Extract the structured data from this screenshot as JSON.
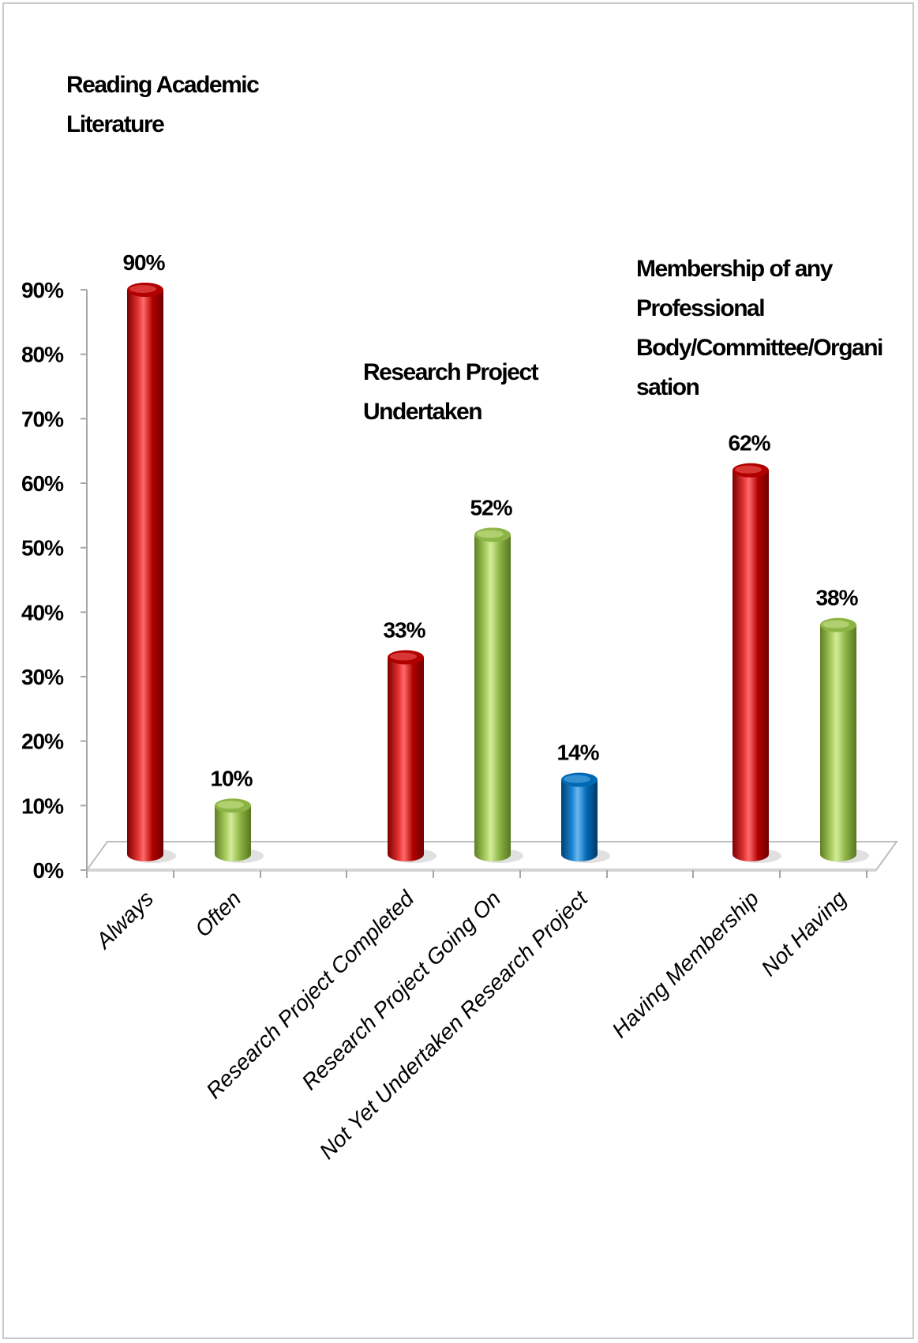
{
  "chart_data": {
    "type": "bar",
    "categories": [
      "Always",
      "Often",
      "Research Project Completed",
      "Research Project Going On",
      "Not Yet Undertaken Research Project",
      "Having Membership",
      "Not Having"
    ],
    "values": [
      90,
      10,
      33,
      52,
      14,
      62,
      38
    ],
    "data_labels": [
      "90%",
      "10%",
      "33%",
      "52%",
      "14%",
      "62%",
      "38%"
    ],
    "bar_colors": [
      "#c00000",
      "#92b84a",
      "#c00000",
      "#92b84a",
      "#0070c0",
      "#c00000",
      "#92b84a"
    ],
    "group_labels": [
      [
        "Reading Academic",
        "Literature"
      ],
      [
        "Research Project",
        "Undertaken"
      ],
      [
        "Membership of any",
        "Professional",
        "Body/Committee/Organi",
        "sation"
      ]
    ],
    "ylim": [
      0,
      90
    ],
    "ytick_labels": [
      "0%",
      "10%",
      "20%",
      "30%",
      "40%",
      "50%",
      "60%",
      "70%",
      "80%",
      "90%"
    ],
    "grid": false,
    "legend": "none"
  }
}
